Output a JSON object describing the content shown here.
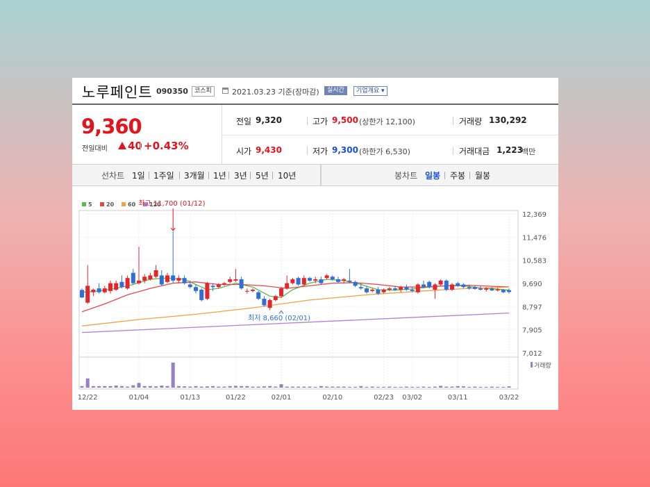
{
  "header": {
    "company": "노루페인트",
    "code": "090350",
    "market": "코스피",
    "date_ref": "2021.03.23 기준(장마감)",
    "realtime": "실시간",
    "corp_info": "기업개요"
  },
  "price": {
    "current": "9,360",
    "change_label": "전일대비",
    "change_value": "40",
    "change_pct": "+0.43%"
  },
  "quote": {
    "prev_label": "전일",
    "prev_value": "9,320",
    "high_label": "고가",
    "high_value": "9,500",
    "upper_limit": "(상한가 12,100)",
    "volume_label": "거래량",
    "volume_value": "130,292",
    "open_label": "시가",
    "open_value": "9,430",
    "low_label": "저가",
    "low_value": "9,300",
    "lower_limit": "(하한가 6,530)",
    "amount_label": "거래대금",
    "amount_value": "1,223",
    "amount_unit": "백만"
  },
  "periods": {
    "line_label": "선차트",
    "line_items": [
      "1일",
      "1주일",
      "3개월",
      "1년",
      "3년",
      "5년",
      "10년"
    ],
    "candle_label": "봉차트",
    "candle_items": [
      "일봉",
      "주봉",
      "월봉"
    ],
    "candle_selected": "일봉"
  },
  "chart_data": {
    "type": "candlestick",
    "legend": [
      {
        "name": "5",
        "color": "#5cb84a"
      },
      {
        "name": "20",
        "color": "#e4474a"
      },
      {
        "name": "60",
        "color": "#f2a144"
      },
      {
        "name": "120",
        "color": "#b07fd6"
      }
    ],
    "y_ticks": [
      "12,369",
      "11,476",
      "10,583",
      "9,690",
      "8,797",
      "7,905",
      "7,012"
    ],
    "ylim": [
      7012,
      12369
    ],
    "x_ticks": [
      {
        "label": "12/22",
        "index": 1
      },
      {
        "label": "01/04",
        "index": 10
      },
      {
        "label": "01/13",
        "index": 19
      },
      {
        "label": "01/22",
        "index": 27
      },
      {
        "label": "02/01",
        "index": 35
      },
      {
        "label": "02/10",
        "index": 44
      },
      {
        "label": "02/23",
        "index": 53
      },
      {
        "label": "03/02",
        "index": 58
      },
      {
        "label": "03/11",
        "index": 66
      },
      {
        "label": "03/22",
        "index": 75
      }
    ],
    "annotations": {
      "high": {
        "text": "최고 11,700 (01/12)",
        "index": 16,
        "value": 11700
      },
      "low": {
        "text": "최저 8,660 (02/01)",
        "index": 35,
        "value": 8660
      }
    },
    "volume_label": "거래량",
    "candles": [
      {
        "o": 9440,
        "h": 9500,
        "l": 9120,
        "c": 9150
      },
      {
        "o": 8950,
        "h": 10400,
        "l": 8900,
        "c": 9600
      },
      {
        "o": 9350,
        "h": 9500,
        "l": 9200,
        "c": 9450
      },
      {
        "o": 9500,
        "h": 9700,
        "l": 9300,
        "c": 9350
      },
      {
        "o": 9350,
        "h": 9600,
        "l": 9300,
        "c": 9500
      },
      {
        "o": 9400,
        "h": 9800,
        "l": 9300,
        "c": 9700
      },
      {
        "o": 9450,
        "h": 9800,
        "l": 9400,
        "c": 9700
      },
      {
        "o": 9750,
        "h": 10000,
        "l": 9500,
        "c": 9550
      },
      {
        "o": 9500,
        "h": 10000,
        "l": 9450,
        "c": 9900
      },
      {
        "o": 10100,
        "h": 10250,
        "l": 9650,
        "c": 9700
      },
      {
        "o": 9700,
        "h": 11100,
        "l": 9650,
        "c": 9800
      },
      {
        "o": 9800,
        "h": 10050,
        "l": 9700,
        "c": 9950
      },
      {
        "o": 9850,
        "h": 10100,
        "l": 9800,
        "c": 10000
      },
      {
        "o": 9950,
        "h": 10400,
        "l": 9900,
        "c": 10200
      },
      {
        "o": 10000,
        "h": 10200,
        "l": 9600,
        "c": 9650
      },
      {
        "o": 9750,
        "h": 10100,
        "l": 9700,
        "c": 10000
      },
      {
        "o": 10000,
        "h": 11700,
        "l": 9700,
        "c": 9800
      },
      {
        "o": 9800,
        "h": 10000,
        "l": 9700,
        "c": 9900
      },
      {
        "o": 9900,
        "h": 10000,
        "l": 9650,
        "c": 9700
      },
      {
        "o": 9650,
        "h": 9800,
        "l": 9500,
        "c": 9550
      },
      {
        "o": 9550,
        "h": 9650,
        "l": 9300,
        "c": 9400
      },
      {
        "o": 9450,
        "h": 9500,
        "l": 9000,
        "c": 9050
      },
      {
        "o": 9100,
        "h": 9750,
        "l": 9050,
        "c": 9700
      },
      {
        "o": 9600,
        "h": 9700,
        "l": 9400,
        "c": 9550
      },
      {
        "o": 9550,
        "h": 9700,
        "l": 9500,
        "c": 9650
      },
      {
        "o": 9650,
        "h": 9750,
        "l": 9600,
        "c": 9700
      },
      {
        "o": 9750,
        "h": 9950,
        "l": 9700,
        "c": 9850
      },
      {
        "o": 9800,
        "h": 10250,
        "l": 9750,
        "c": 9850
      },
      {
        "o": 9850,
        "h": 9950,
        "l": 9450,
        "c": 9500
      },
      {
        "o": 9400,
        "h": 9500,
        "l": 9300,
        "c": 9400
      },
      {
        "o": 9400,
        "h": 9500,
        "l": 9350,
        "c": 9450
      },
      {
        "o": 9350,
        "h": 9400,
        "l": 9050,
        "c": 9100
      },
      {
        "o": 9100,
        "h": 9200,
        "l": 8800,
        "c": 8850
      },
      {
        "o": 8750,
        "h": 9100,
        "l": 8660,
        "c": 9050
      },
      {
        "o": 9050,
        "h": 9250,
        "l": 9000,
        "c": 9200
      },
      {
        "o": 9200,
        "h": 9550,
        "l": 9150,
        "c": 9500
      },
      {
        "o": 9500,
        "h": 10000,
        "l": 9450,
        "c": 9700
      },
      {
        "o": 9700,
        "h": 9900,
        "l": 9650,
        "c": 9850
      },
      {
        "o": 9900,
        "h": 9950,
        "l": 9600,
        "c": 9650
      },
      {
        "o": 9650,
        "h": 10000,
        "l": 9600,
        "c": 9900
      },
      {
        "o": 9900,
        "h": 9950,
        "l": 9750,
        "c": 9800
      },
      {
        "o": 9800,
        "h": 9950,
        "l": 9700,
        "c": 9850
      },
      {
        "o": 9850,
        "h": 9950,
        "l": 9650,
        "c": 9700
      },
      {
        "o": 9900,
        "h": 10050,
        "l": 9850,
        "c": 10000
      },
      {
        "o": 9950,
        "h": 10000,
        "l": 9800,
        "c": 9850
      },
      {
        "o": 9850,
        "h": 9950,
        "l": 9700,
        "c": 9750
      },
      {
        "o": 9800,
        "h": 9900,
        "l": 9700,
        "c": 9850
      },
      {
        "o": 9800,
        "h": 10250,
        "l": 9700,
        "c": 9750
      },
      {
        "o": 9750,
        "h": 9800,
        "l": 9550,
        "c": 9600
      },
      {
        "o": 9550,
        "h": 9700,
        "l": 9450,
        "c": 9500
      },
      {
        "o": 9500,
        "h": 9600,
        "l": 9300,
        "c": 9350
      },
      {
        "o": 9400,
        "h": 9500,
        "l": 9350,
        "c": 9450
      },
      {
        "o": 9450,
        "h": 9550,
        "l": 9250,
        "c": 9300
      },
      {
        "o": 9350,
        "h": 9500,
        "l": 9300,
        "c": 9450
      },
      {
        "o": 9450,
        "h": 9550,
        "l": 9400,
        "c": 9500
      },
      {
        "o": 9500,
        "h": 9600,
        "l": 9400,
        "c": 9450
      },
      {
        "o": 9450,
        "h": 9600,
        "l": 9350,
        "c": 9550
      },
      {
        "o": 9550,
        "h": 9650,
        "l": 9400,
        "c": 9450
      },
      {
        "o": 9450,
        "h": 9550,
        "l": 9350,
        "c": 9400
      },
      {
        "o": 9350,
        "h": 9700,
        "l": 9300,
        "c": 9650
      },
      {
        "o": 9650,
        "h": 9800,
        "l": 9500,
        "c": 9550
      },
      {
        "o": 9750,
        "h": 9800,
        "l": 9500,
        "c": 9550
      },
      {
        "o": 9450,
        "h": 9700,
        "l": 9100,
        "c": 9650
      },
      {
        "o": 9650,
        "h": 9850,
        "l": 9600,
        "c": 9800
      },
      {
        "o": 9800,
        "h": 9850,
        "l": 9400,
        "c": 9450
      },
      {
        "o": 9450,
        "h": 9700,
        "l": 9400,
        "c": 9650
      },
      {
        "o": 9700,
        "h": 9750,
        "l": 9550,
        "c": 9600
      },
      {
        "o": 9650,
        "h": 9700,
        "l": 9500,
        "c": 9550
      },
      {
        "o": 9550,
        "h": 9650,
        "l": 9450,
        "c": 9500
      },
      {
        "o": 9550,
        "h": 9600,
        "l": 9450,
        "c": 9480
      },
      {
        "o": 9500,
        "h": 9600,
        "l": 9420,
        "c": 9450
      },
      {
        "o": 9450,
        "h": 9550,
        "l": 9380,
        "c": 9500
      },
      {
        "o": 9500,
        "h": 9550,
        "l": 9400,
        "c": 9420
      },
      {
        "o": 9420,
        "h": 9520,
        "l": 9380,
        "c": 9460
      },
      {
        "o": 9450,
        "h": 9480,
        "l": 9320,
        "c": 9350
      },
      {
        "o": 9430,
        "h": 9500,
        "l": 9300,
        "c": 9360
      }
    ],
    "volumes": [
      60,
      350,
      60,
      60,
      60,
      60,
      80,
      60,
      40,
      90,
      180,
      60,
      60,
      50,
      80,
      60,
      950,
      60,
      50,
      40,
      60,
      40,
      50,
      60,
      40,
      40,
      60,
      70,
      60,
      60,
      40,
      40,
      50,
      60,
      40,
      130,
      40,
      40,
      40,
      40,
      40,
      30,
      60,
      40,
      40,
      40,
      40,
      30,
      30,
      60,
      30,
      40,
      30,
      30,
      40,
      30,
      30,
      40,
      30,
      30,
      40,
      30,
      40,
      70,
      40,
      40,
      60,
      50,
      30,
      40,
      30,
      30,
      40,
      30,
      30,
      50
    ],
    "volume_max": 1000,
    "ma": {
      "ma5": [
        [
          0,
          9350
        ],
        [
          3,
          9400
        ],
        [
          6,
          9500
        ],
        [
          9,
          9650
        ],
        [
          12,
          9850
        ],
        [
          15,
          9900
        ],
        [
          18,
          9850
        ],
        [
          20,
          9650
        ],
        [
          22,
          9450
        ],
        [
          24,
          9500
        ],
        [
          27,
          9700
        ],
        [
          30,
          9550
        ],
        [
          33,
          9200
        ],
        [
          35,
          9150
        ],
        [
          37,
          9450
        ],
        [
          40,
          9700
        ],
        [
          43,
          9850
        ],
        [
          46,
          9800
        ],
        [
          49,
          9650
        ],
        [
          52,
          9450
        ],
        [
          55,
          9430
        ],
        [
          58,
          9480
        ],
        [
          61,
          9550
        ],
        [
          64,
          9600
        ],
        [
          67,
          9600
        ],
        [
          70,
          9520
        ],
        [
          73,
          9470
        ],
        [
          75,
          9430
        ]
      ],
      "ma20": [
        [
          0,
          8600
        ],
        [
          4,
          8900
        ],
        [
          8,
          9250
        ],
        [
          12,
          9500
        ],
        [
          16,
          9700
        ],
        [
          20,
          9750
        ],
        [
          24,
          9650
        ],
        [
          28,
          9650
        ],
        [
          32,
          9600
        ],
        [
          36,
          9500
        ],
        [
          40,
          9600
        ],
        [
          44,
          9700
        ],
        [
          48,
          9720
        ],
        [
          52,
          9650
        ],
        [
          56,
          9550
        ],
        [
          60,
          9550
        ],
        [
          64,
          9600
        ],
        [
          68,
          9620
        ],
        [
          72,
          9580
        ],
        [
          75,
          9560
        ]
      ],
      "ma60": [
        [
          0,
          8050
        ],
        [
          10,
          8300
        ],
        [
          20,
          8500
        ],
        [
          30,
          8750
        ],
        [
          40,
          9050
        ],
        [
          50,
          9250
        ],
        [
          60,
          9400
        ],
        [
          68,
          9500
        ],
        [
          75,
          9550
        ]
      ],
      "ma120": [
        [
          0,
          7800
        ],
        [
          15,
          7950
        ],
        [
          30,
          8100
        ],
        [
          45,
          8250
        ],
        [
          60,
          8400
        ],
        [
          75,
          8550
        ]
      ]
    }
  }
}
